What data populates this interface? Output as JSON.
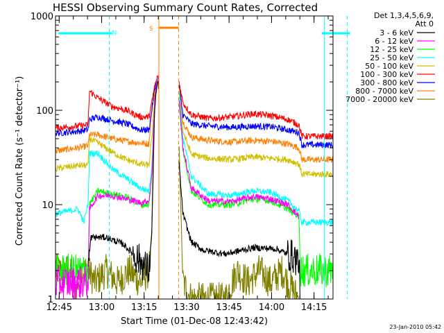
{
  "chart_data": {
    "type": "line",
    "title": "HESSI Observing Summary Count Rates, Corrected",
    "xlabel": "Start Time (01-Dec-08 12:43:42)",
    "ylabel": "Corrected Count Rate (s⁻¹ detector⁻¹)",
    "yscale": "log",
    "ylim": [
      1,
      1000
    ],
    "xlim_minutes_after_12_43_42": [
      0,
      98
    ],
    "x_tick_labels": [
      "12:45",
      "13:00",
      "13:15",
      "13:30",
      "13:45",
      "14:00",
      "14:15"
    ],
    "y_tick_labels": [
      "1",
      "10",
      "100",
      "1000"
    ],
    "y_tick_values": [
      1,
      10,
      100,
      1000
    ],
    "legend_header": [
      "Det 1,3,4,5,6,9,",
      "Att 0"
    ],
    "legend_placement": "right",
    "footer_date": "23-Jan-2010 05:42",
    "flags": [
      {
        "label": "N",
        "color": "#00ffff",
        "segments": [
          [
            1,
            20
          ],
          [
            94,
            104
          ]
        ],
        "markers": [
          19,
          95,
          103
        ]
      },
      {
        "label": "S",
        "color": "#ff7f00",
        "segments": [
          [
            36.5,
            43.5
          ]
        ],
        "markers": [
          36.5,
          43.5
        ]
      }
    ],
    "gap": [
      36.5,
      43.5
    ],
    "series": [
      {
        "name": "3 - 6 keV",
        "color": "#000000",
        "points": [
          [
            11.5,
            2
          ],
          [
            12.5,
            4.5
          ],
          [
            18,
            4.5
          ],
          [
            24,
            3.8
          ],
          [
            30,
            2.5
          ],
          [
            33,
            2
          ],
          [
            34,
            5
          ],
          [
            35,
            100
          ],
          [
            36,
            200
          ],
          [
            43.5,
            30
          ],
          [
            45,
            8
          ],
          [
            48,
            4
          ],
          [
            52,
            3.3
          ],
          [
            60,
            3
          ],
          [
            70,
            3.5
          ],
          [
            78,
            3.4
          ],
          [
            84,
            2.8
          ],
          [
            86,
            2.5
          ],
          [
            86.5,
            1
          ]
        ]
      },
      {
        "name": "6 - 12 keV",
        "color": "#ff00ff",
        "points": [
          [
            0,
            1.5
          ],
          [
            11.5,
            1.5
          ],
          [
            12,
            9
          ],
          [
            15,
            12.5
          ],
          [
            20,
            12.5
          ],
          [
            25,
            11.5
          ],
          [
            30,
            10.5
          ],
          [
            33,
            11
          ],
          [
            34,
            20
          ],
          [
            35,
            120
          ],
          [
            36,
            220
          ],
          [
            43.5,
            150
          ],
          [
            45,
            40
          ],
          [
            48,
            15
          ],
          [
            54,
            11
          ],
          [
            62,
            10.8
          ],
          [
            70,
            12.2
          ],
          [
            76,
            11.5
          ],
          [
            82,
            10
          ],
          [
            86,
            7.5
          ]
        ]
      },
      {
        "name": "12 - 25 keV",
        "color": "#00ff00",
        "points": [
          [
            0,
            2
          ],
          [
            11.5,
            2
          ],
          [
            12,
            10
          ],
          [
            15,
            14
          ],
          [
            20,
            13
          ],
          [
            25,
            12
          ],
          [
            30,
            10
          ],
          [
            33,
            10
          ],
          [
            34,
            20
          ],
          [
            35,
            110
          ],
          [
            36,
            210
          ],
          [
            43.5,
            140
          ],
          [
            45,
            38
          ],
          [
            48,
            14
          ],
          [
            54,
            10
          ],
          [
            62,
            10
          ],
          [
            70,
            11.5
          ],
          [
            76,
            11
          ],
          [
            82,
            9
          ],
          [
            86,
            7.5
          ],
          [
            86.5,
            2
          ],
          [
            98,
            2
          ]
        ]
      },
      {
        "name": "25 - 50 keV",
        "color": "#00ffff",
        "points": [
          [
            0,
            8
          ],
          [
            8,
            9
          ],
          [
            10,
            6.5
          ],
          [
            11.5,
            10
          ],
          [
            12,
            35
          ],
          [
            15,
            35
          ],
          [
            20,
            24
          ],
          [
            25,
            19
          ],
          [
            30,
            15
          ],
          [
            33,
            14
          ],
          [
            34,
            25
          ],
          [
            35,
            120
          ],
          [
            36,
            220
          ],
          [
            43.5,
            170
          ],
          [
            45,
            50
          ],
          [
            48,
            20
          ],
          [
            54,
            13
          ],
          [
            62,
            12.5
          ],
          [
            70,
            14
          ],
          [
            76,
            13.5
          ],
          [
            82,
            11
          ],
          [
            86,
            8.5
          ],
          [
            87,
            6.5
          ],
          [
            98,
            6.5
          ]
        ]
      },
      {
        "name": "50 - 100 keV",
        "color": "#d0c000",
        "points": [
          [
            0,
            24
          ],
          [
            8,
            26
          ],
          [
            11.5,
            26
          ],
          [
            12,
            50
          ],
          [
            15,
            45
          ],
          [
            20,
            36
          ],
          [
            25,
            30
          ],
          [
            30,
            27
          ],
          [
            33,
            26
          ],
          [
            34,
            50
          ],
          [
            35,
            120
          ],
          [
            36,
            220
          ],
          [
            43.5,
            160
          ],
          [
            45,
            60
          ],
          [
            48,
            34
          ],
          [
            54,
            31
          ],
          [
            62,
            30
          ],
          [
            70,
            32
          ],
          [
            76,
            31
          ],
          [
            82,
            30
          ],
          [
            86,
            27
          ],
          [
            87,
            21
          ],
          [
            98,
            21
          ]
        ]
      },
      {
        "name": "100 - 300 keV",
        "color": "#ff0000",
        "points": [
          [
            0,
            65
          ],
          [
            8,
            68
          ],
          [
            11.5,
            70
          ],
          [
            12,
            160
          ],
          [
            15,
            135
          ],
          [
            20,
            110
          ],
          [
            25,
            100
          ],
          [
            30,
            85
          ],
          [
            33,
            85
          ],
          [
            34,
            120
          ],
          [
            35,
            180
          ],
          [
            36,
            220
          ],
          [
            43.5,
            210
          ],
          [
            45,
            120
          ],
          [
            48,
            90
          ],
          [
            54,
            82
          ],
          [
            62,
            85
          ],
          [
            70,
            92
          ],
          [
            76,
            88
          ],
          [
            82,
            80
          ],
          [
            86,
            70
          ],
          [
            87,
            53
          ],
          [
            98,
            53
          ]
        ]
      },
      {
        "name": "300 - 800 keV",
        "color": "#0000ff",
        "points": [
          [
            0,
            57
          ],
          [
            8,
            60
          ],
          [
            11.5,
            62
          ],
          [
            12,
            80
          ],
          [
            15,
            85
          ],
          [
            20,
            78
          ],
          [
            25,
            72
          ],
          [
            30,
            62
          ],
          [
            33,
            62
          ],
          [
            34,
            100
          ],
          [
            35,
            170
          ],
          [
            36,
            220
          ],
          [
            43.5,
            200
          ],
          [
            45,
            90
          ],
          [
            48,
            72
          ],
          [
            54,
            68
          ],
          [
            62,
            66
          ],
          [
            70,
            68
          ],
          [
            76,
            67
          ],
          [
            82,
            62
          ],
          [
            86,
            58
          ],
          [
            87,
            43
          ],
          [
            98,
            43
          ]
        ]
      },
      {
        "name": "800 - 7000 keV",
        "color": "#ff7f00",
        "points": [
          [
            0,
            37
          ],
          [
            8,
            40
          ],
          [
            11.5,
            42
          ],
          [
            12,
            55
          ],
          [
            15,
            55
          ],
          [
            20,
            50
          ],
          [
            25,
            47
          ],
          [
            30,
            45
          ],
          [
            33,
            44
          ],
          [
            34,
            100
          ],
          [
            35,
            160
          ],
          [
            36,
            210
          ],
          [
            43.5,
            190
          ],
          [
            45,
            75
          ],
          [
            48,
            52
          ],
          [
            54,
            48
          ],
          [
            62,
            46
          ],
          [
            70,
            48
          ],
          [
            76,
            47
          ],
          [
            82,
            44
          ],
          [
            86,
            40
          ],
          [
            87,
            30
          ],
          [
            98,
            30
          ]
        ]
      },
      {
        "name": "7000 - 20000 keV",
        "color": "#808000",
        "points": [
          [
            0,
            2
          ],
          [
            5,
            2
          ],
          [
            7,
            1.2
          ],
          [
            9,
            2
          ],
          [
            11.5,
            2
          ],
          [
            14,
            1.5
          ],
          [
            18,
            2
          ],
          [
            22,
            1.5
          ],
          [
            26,
            2
          ],
          [
            30,
            1.5
          ],
          [
            33,
            2
          ],
          [
            34,
            5
          ],
          [
            35,
            150
          ],
          [
            36,
            220
          ],
          [
            43.5,
            60
          ],
          [
            45,
            1.5
          ],
          [
            48,
            1
          ],
          [
            60,
            1
          ],
          [
            64,
            2
          ],
          [
            68,
            1.5
          ],
          [
            72,
            2
          ],
          [
            76,
            1.5
          ],
          [
            80,
            2
          ],
          [
            82,
            1.5
          ],
          [
            86,
            1
          ]
        ]
      }
    ]
  }
}
